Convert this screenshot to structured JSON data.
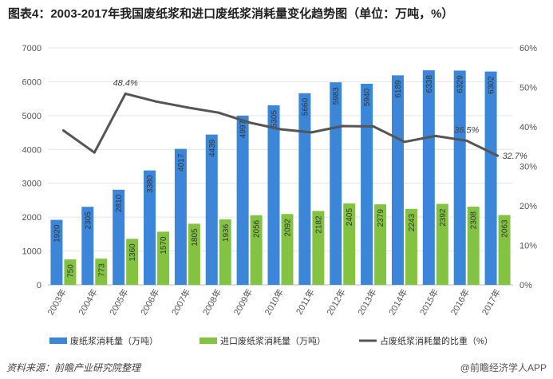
{
  "title": "图表4：2003-2017年我国废纸浆和进口废纸浆消耗量变化趋势图（单位：万吨，%）",
  "source": "资料来源：前瞻产业研究院整理",
  "credit": "@前瞻经济学人APP",
  "colors": {
    "series1": "#3b86d9",
    "series2": "#84c341",
    "series3": "#555555",
    "grid": "#e4e4e4"
  },
  "chart_data": {
    "type": "bar",
    "categories": [
      "2003年",
      "2004年",
      "2005年",
      "2006年",
      "2007年",
      "2008年",
      "2009年",
      "2010年",
      "2011年",
      "2012年",
      "2013年",
      "2014年",
      "2015年",
      "2016年",
      "2017年"
    ],
    "series": [
      {
        "name": "废纸浆消耗量（万吨）",
        "type": "bar",
        "axis": "left",
        "values": [
          1920,
          2305,
          2810,
          3380,
          4017,
          4439,
          4997,
          5305,
          5660,
          5983,
          5940,
          6189,
          6338,
          6329,
          6302
        ]
      },
      {
        "name": "进口废纸浆消耗量（万吨）",
        "type": "bar",
        "axis": "left",
        "values": [
          750,
          773,
          1360,
          1570,
          1805,
          1936,
          2056,
          2092,
          2182,
          2405,
          2379,
          2243,
          2392,
          2308,
          2063
        ]
      },
      {
        "name": "占废纸浆消耗量的比重（%）",
        "type": "line",
        "axis": "right",
        "values": [
          39.1,
          33.5,
          48.4,
          46.4,
          44.9,
          43.6,
          41.1,
          39.4,
          38.6,
          40.2,
          40.1,
          36.2,
          37.7,
          36.5,
          32.7
        ],
        "point_labels": {
          "2": "48.4%",
          "13": "36.5%",
          "14": "32.7%"
        }
      }
    ],
    "y_left": {
      "min": 0,
      "max": 7000,
      "ticks": [
        "0",
        "1000",
        "2000",
        "3000",
        "4000",
        "5000",
        "6000",
        "7000"
      ]
    },
    "y_right": {
      "min": 0,
      "max": 60,
      "ticks": [
        "0%",
        "10%",
        "20%",
        "30%",
        "40%",
        "50%",
        "60%"
      ]
    },
    "grid": true,
    "legend_position": "bottom"
  }
}
